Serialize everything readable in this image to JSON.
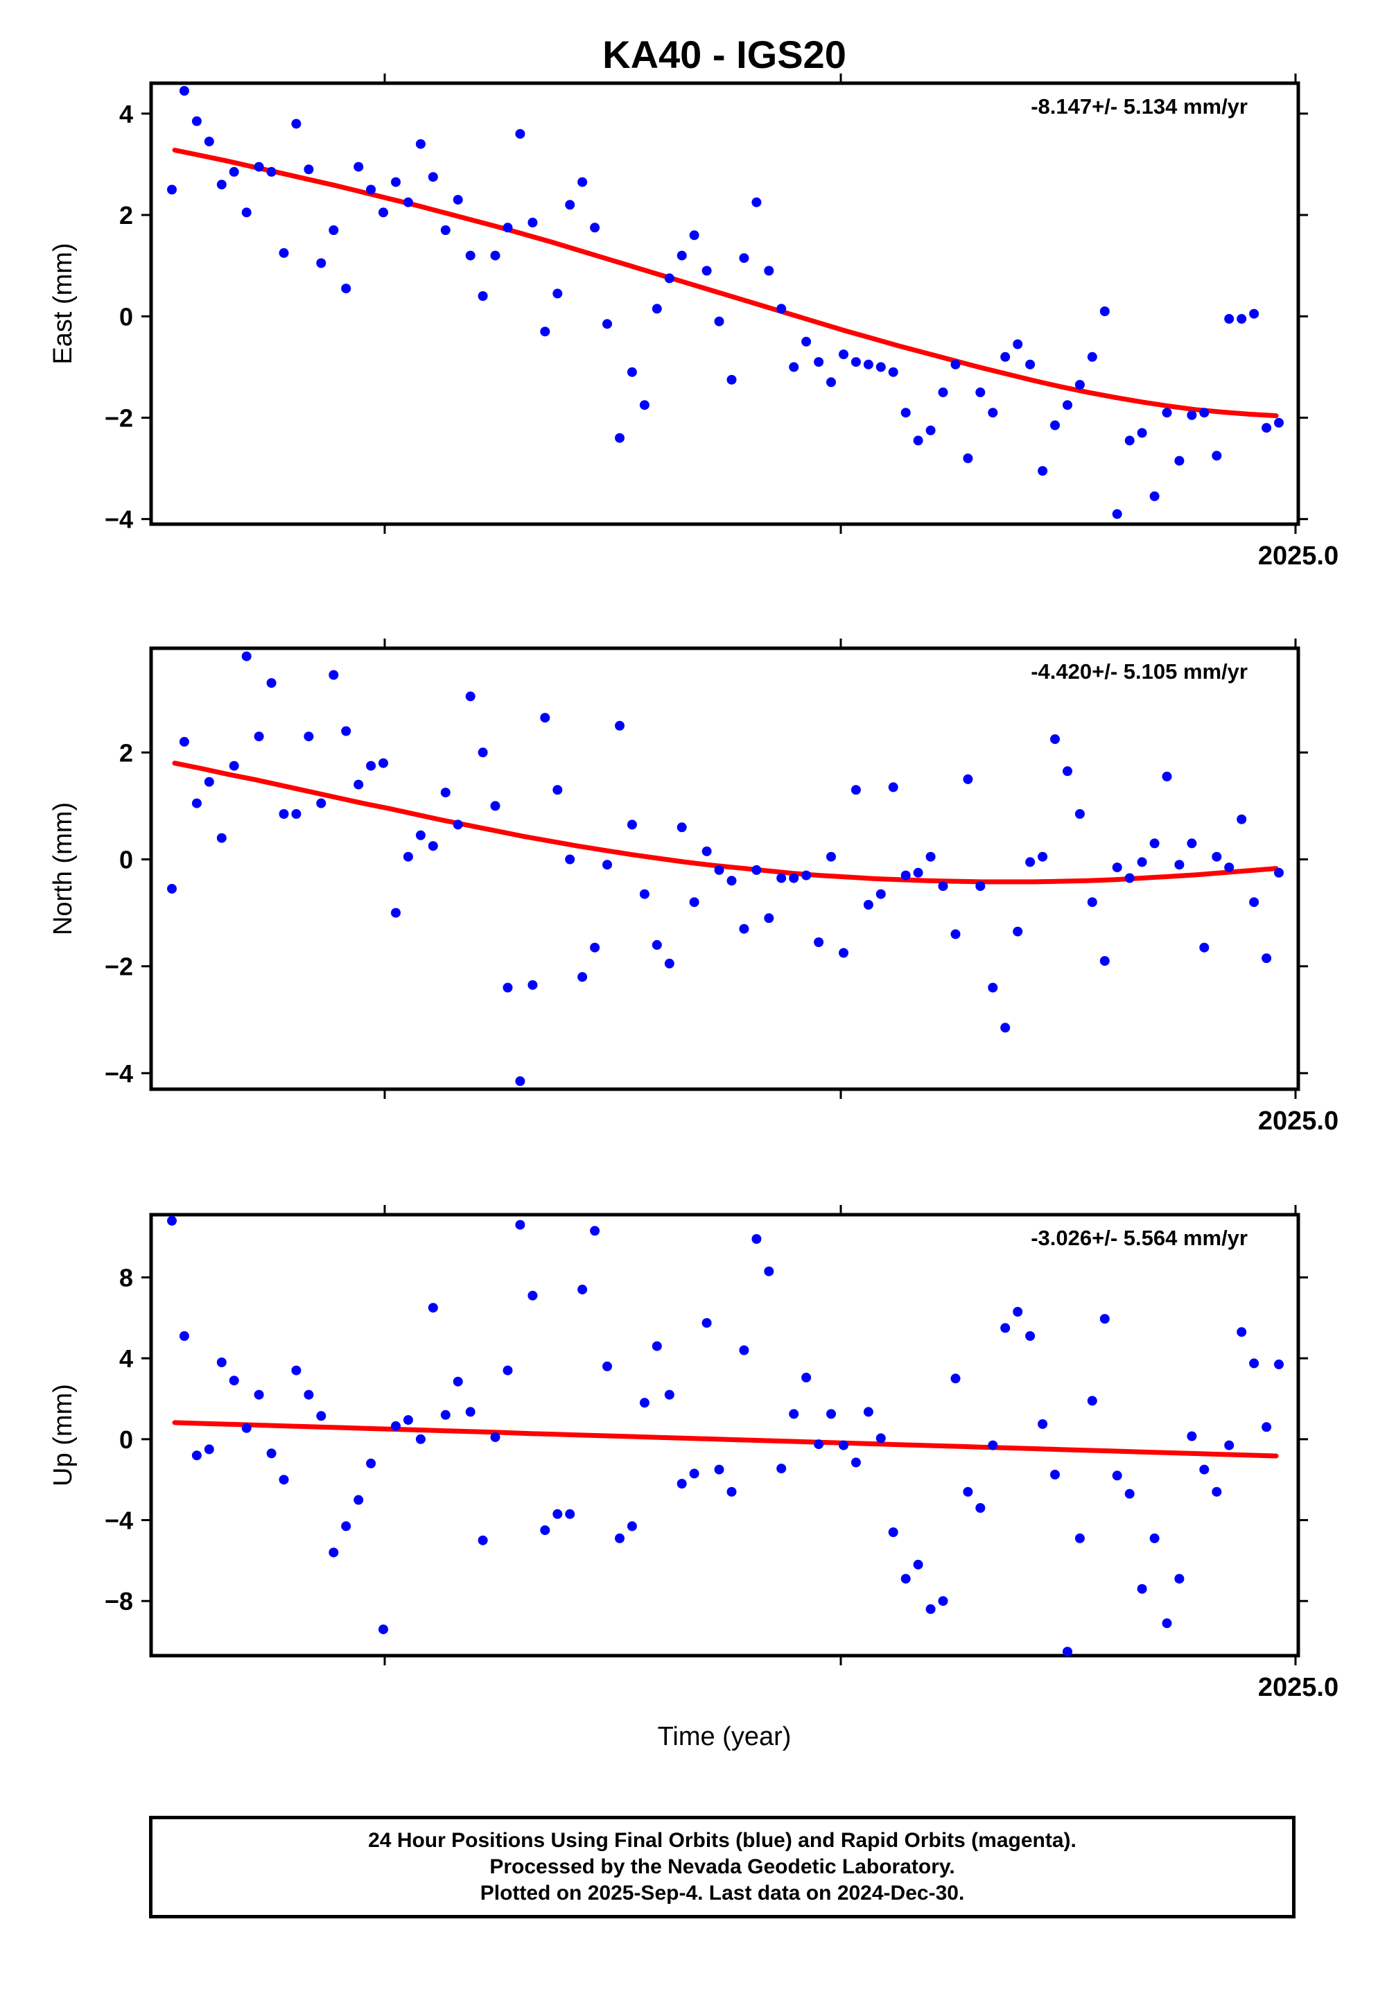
{
  "title": "KA40 - IGS20",
  "x_axis_label": "Time (year)",
  "footer": {
    "line1": "24 Hour Positions Using Final Orbits (blue) and Rapid Orbits (magenta).",
    "line2": "Processed by the Nevada Geodetic Laboratory.",
    "line3": "Plotted on 2025-Sep-4. Last data on 2024-Dec-30."
  },
  "colors": {
    "points": "#0000ff",
    "trend": "#ff0000",
    "frame": "#000000"
  },
  "chart_data": [
    {
      "type": "scatter",
      "ylabel": "East (mm)",
      "rate_label": "-8.147+/- 5.134 mm/yr",
      "x_tick_label": "2025.0",
      "ylim": [
        -4.1,
        4.6
      ],
      "yticks": [
        4,
        2,
        0,
        -2,
        -4
      ],
      "ytick_labels": [
        "4",
        "2",
        "0",
        "−2",
        "−4"
      ],
      "series_fit": [
        3.28,
        3.17,
        3.06,
        2.94,
        2.82,
        2.7,
        2.58,
        2.45,
        2.32,
        2.19,
        2.05,
        1.91,
        1.77,
        1.62,
        1.47,
        1.31,
        1.15,
        0.99,
        0.83,
        0.67,
        0.51,
        0.35,
        0.19,
        0.03,
        -0.13,
        -0.29,
        -0.44,
        -0.59,
        -0.73,
        -0.87,
        -1.01,
        -1.14,
        -1.27,
        -1.39,
        -1.5,
        -1.6,
        -1.69,
        -1.77,
        -1.84,
        -1.89,
        -1.93,
        -1.96
      ],
      "values": [
        2.5,
        4.45,
        3.85,
        3.45,
        2.6,
        2.85,
        2.05,
        2.95,
        2.85,
        1.25,
        3.8,
        2.9,
        1.05,
        1.7,
        0.55,
        2.95,
        2.5,
        2.05,
        2.65,
        2.25,
        3.4,
        2.75,
        1.7,
        2.3,
        1.2,
        0.4,
        1.2,
        1.75,
        3.6,
        1.85,
        -0.3,
        0.45,
        2.2,
        2.65,
        1.75,
        -0.15,
        -2.4,
        -1.1,
        -1.75,
        0.15,
        0.75,
        1.2,
        1.6,
        0.9,
        -0.1,
        -1.25,
        1.15,
        2.25,
        0.9,
        0.15,
        -1.0,
        -0.5,
        -0.9,
        -1.3,
        -0.75,
        -0.9,
        -0.95,
        -1.0,
        -1.1,
        -1.9,
        -2.45,
        -2.25,
        -1.5,
        -0.95,
        -2.8,
        -1.5,
        -1.9,
        -0.8,
        -0.55,
        -0.95,
        -3.05,
        -2.15,
        -1.75,
        -1.35,
        -0.8,
        0.1,
        -3.9,
        -2.45,
        -2.3,
        -3.55,
        -1.9,
        -2.85,
        -1.95,
        -1.9,
        -2.75,
        -0.05,
        -0.05,
        0.05,
        -2.2,
        -2.1
      ]
    },
    {
      "type": "scatter",
      "ylabel": "North (mm)",
      "rate_label": "-4.420+/- 5.105 mm/yr",
      "x_tick_label": "2025.0",
      "ylim": [
        -4.3,
        3.95
      ],
      "yticks": [
        2,
        0,
        -2,
        -4
      ],
      "ytick_labels": [
        "2",
        "0",
        "−2",
        "−4"
      ],
      "series_fit": [
        1.8,
        1.7,
        1.59,
        1.49,
        1.38,
        1.27,
        1.16,
        1.05,
        0.95,
        0.84,
        0.73,
        0.63,
        0.53,
        0.43,
        0.34,
        0.25,
        0.17,
        0.09,
        0.02,
        -0.05,
        -0.11,
        -0.16,
        -0.21,
        -0.26,
        -0.3,
        -0.33,
        -0.36,
        -0.38,
        -0.4,
        -0.41,
        -0.42,
        -0.42,
        -0.42,
        -0.41,
        -0.4,
        -0.38,
        -0.35,
        -0.32,
        -0.29,
        -0.25,
        -0.21,
        -0.17
      ],
      "values": [
        -0.55,
        2.2,
        1.05,
        1.45,
        0.4,
        1.75,
        3.8,
        2.3,
        3.3,
        0.85,
        0.85,
        2.3,
        1.05,
        3.45,
        2.4,
        1.4,
        1.75,
        1.8,
        -1.0,
        0.05,
        0.45,
        0.25,
        1.25,
        0.65,
        3.05,
        2.0,
        1.0,
        -2.4,
        -4.15,
        -2.35,
        2.65,
        1.3,
        0.0,
        -2.2,
        -1.65,
        -0.1,
        2.5,
        0.65,
        -0.65,
        -1.6,
        -1.95,
        0.6,
        -0.8,
        0.15,
        -0.2,
        -0.4,
        -1.3,
        -0.2,
        -1.1,
        -0.35,
        -0.35,
        -0.3,
        -1.55,
        0.05,
        -1.75,
        1.3,
        -0.85,
        -0.65,
        1.35,
        -0.3,
        -0.25,
        0.05,
        -0.5,
        -1.4,
        1.5,
        -0.5,
        -2.4,
        -3.15,
        -1.35,
        -0.05,
        0.05,
        2.25,
        1.65,
        0.85,
        -0.8,
        -1.9,
        -0.15,
        -0.35,
        -0.05,
        0.3,
        1.55,
        -0.1,
        0.3,
        -1.65,
        0.05,
        -0.15,
        0.75,
        -0.8,
        -1.85,
        -0.25
      ]
    },
    {
      "type": "scatter",
      "ylabel": "Up (mm)",
      "rate_label": "-3.026+/- 5.564 mm/yr",
      "x_tick_label": "2025.0",
      "ylim": [
        -10.7,
        11.1
      ],
      "yticks": [
        8,
        4,
        0,
        -4,
        -8
      ],
      "ytick_labels": [
        "8",
        "4",
        "0",
        "−4",
        "−8"
      ],
      "series_fit": [
        0.82,
        0.78,
        0.74,
        0.7,
        0.66,
        0.62,
        0.58,
        0.54,
        0.5,
        0.46,
        0.42,
        0.38,
        0.34,
        0.29,
        0.25,
        0.21,
        0.17,
        0.13,
        0.09,
        0.05,
        0.01,
        -0.03,
        -0.07,
        -0.11,
        -0.15,
        -0.19,
        -0.23,
        -0.27,
        -0.31,
        -0.35,
        -0.39,
        -0.43,
        -0.47,
        -0.51,
        -0.55,
        -0.59,
        -0.63,
        -0.67,
        -0.71,
        -0.75,
        -0.79,
        -0.83
      ],
      "values": [
        10.8,
        5.1,
        -0.8,
        -0.5,
        3.8,
        2.9,
        0.55,
        2.2,
        -0.7,
        -2.0,
        3.4,
        2.2,
        1.15,
        -5.6,
        -4.3,
        -3.0,
        -1.2,
        -9.4,
        0.65,
        0.95,
        0.0,
        6.5,
        1.2,
        2.85,
        1.35,
        -5.0,
        0.1,
        3.4,
        10.6,
        7.1,
        -4.5,
        -3.7,
        -3.7,
        7.4,
        10.3,
        3.6,
        -4.9,
        -4.3,
        1.8,
        4.6,
        2.2,
        -2.2,
        -1.7,
        5.75,
        -1.5,
        -2.6,
        4.4,
        9.9,
        8.3,
        -1.45,
        1.25,
        3.05,
        -0.25,
        1.25,
        -0.3,
        -1.15,
        1.35,
        0.05,
        -4.6,
        -6.9,
        -6.2,
        -8.4,
        -8.0,
        3.0,
        -2.6,
        -3.4,
        -0.3,
        5.5,
        6.3,
        5.1,
        0.75,
        -1.75,
        -10.5,
        -4.9,
        1.9,
        5.95,
        -1.8,
        -2.7,
        -7.4,
        -4.9,
        -9.1,
        -6.9,
        0.15,
        -1.5,
        -2.6,
        -0.3,
        5.3,
        3.75,
        0.6,
        3.7
      ]
    }
  ]
}
